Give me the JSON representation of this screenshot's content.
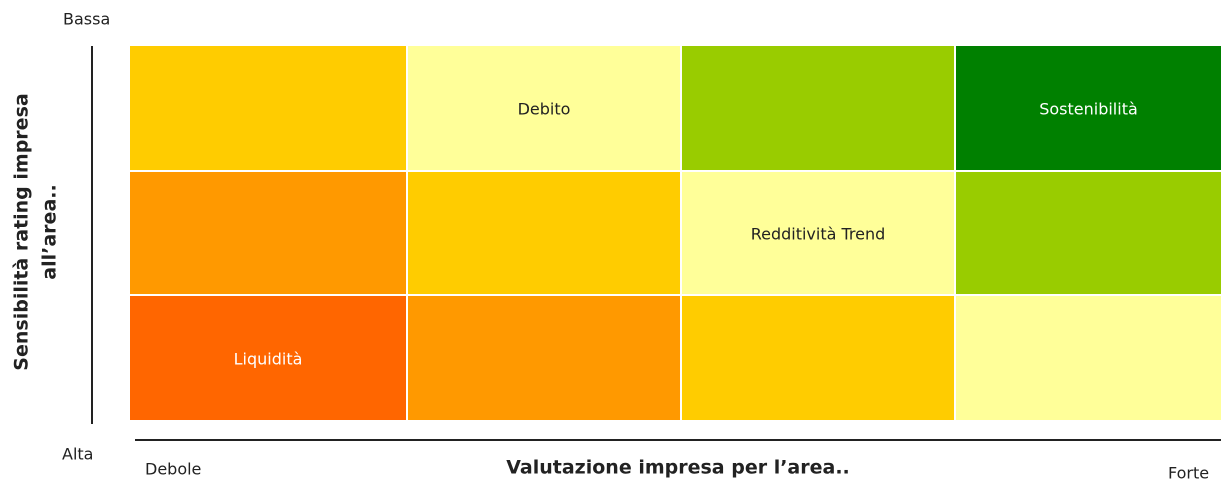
{
  "y_axis": {
    "label_lines": [
      "Sensibilità rating impresa",
      "all’area.."
    ],
    "top": "Bassa",
    "bottom": "Alta"
  },
  "x_axis": {
    "label": "Valutazione impresa per l’area..",
    "left": "Debole",
    "right": "Forte"
  },
  "grid": {
    "rows": [
      [
        {
          "color": "#ffcc00"
        },
        {
          "color": "#ffff99",
          "label": "Debito"
        },
        {
          "color": "#99cc00"
        },
        {
          "color": "#008000",
          "label": "Sostenibilità",
          "text_color": "#ffffff"
        }
      ],
      [
        {
          "color": "#ff9900"
        },
        {
          "color": "#ffcc00"
        },
        {
          "color": "#ffff99",
          "label": "Redditività Trend"
        },
        {
          "color": "#99cc00"
        }
      ],
      [
        {
          "color": "#ff6600",
          "label": "Liquidità",
          "text_color": "#ffffff"
        },
        {
          "color": "#ff9900"
        },
        {
          "color": "#ffcc00"
        },
        {
          "color": "#ffff99"
        }
      ]
    ]
  }
}
